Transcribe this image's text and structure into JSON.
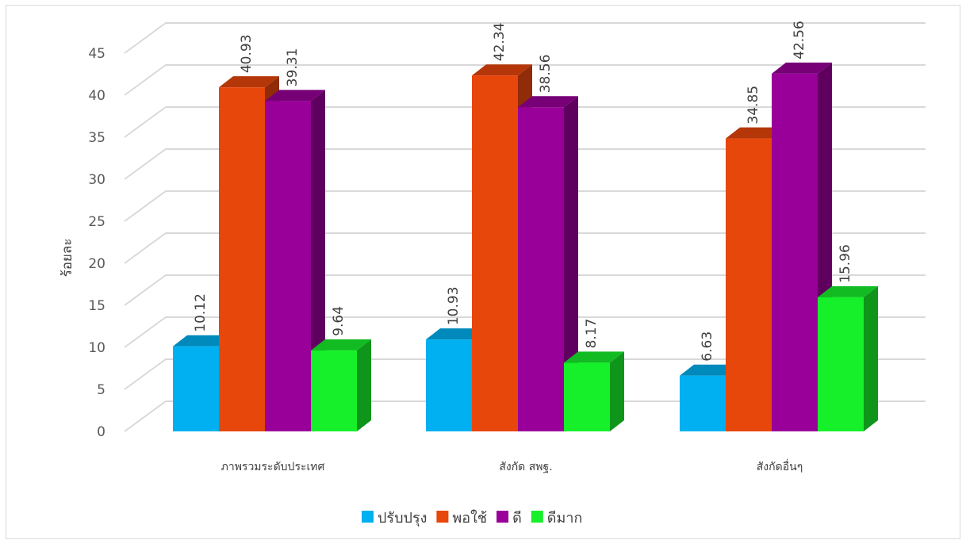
{
  "chart_data": {
    "type": "bar",
    "style": "3d-clustered-column",
    "title": "",
    "xlabel": "",
    "ylabel": "ร้อยละ",
    "ylim": [
      0,
      45
    ],
    "yticks": [
      0,
      5,
      10,
      15,
      20,
      25,
      30,
      35,
      40,
      45
    ],
    "grid": true,
    "legend_position": "bottom",
    "categories": [
      "ภาพรวมระดับประเทศ",
      "สังกัด สพฐ.",
      "สังกัดอื่นๆ"
    ],
    "series": [
      {
        "name": "ปรับปรุง",
        "color": "#00b0f0",
        "values": [
          10.12,
          10.93,
          6.63
        ]
      },
      {
        "name": "พอใช้",
        "color": "#e8470c",
        "values": [
          40.93,
          42.34,
          34.85
        ]
      },
      {
        "name": "ดี",
        "color": "#990099",
        "values": [
          39.31,
          38.56,
          42.56
        ]
      },
      {
        "name": "ดีมาก",
        "color": "#16f02a",
        "values": [
          9.64,
          8.17,
          15.96
        ]
      }
    ]
  }
}
